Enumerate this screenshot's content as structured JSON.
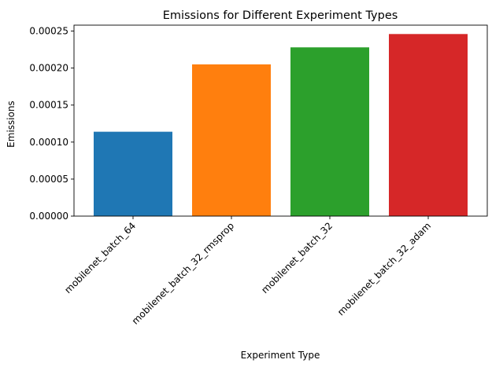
{
  "chart_data": {
    "type": "bar",
    "title": "Emissions for Different Experiment Types",
    "xlabel": "Experiment Type",
    "ylabel": "Emissions",
    "categories": [
      "mobilenet_batch_64",
      "mobilenet_batch_32_rmsprop",
      "mobilenet_batch_32",
      "mobilenet_batch_32_adam"
    ],
    "values": [
      0.000114,
      0.000205,
      0.000228,
      0.000246
    ],
    "colors": [
      "#1f77b4",
      "#ff7f0e",
      "#2ca02c",
      "#d62728"
    ],
    "ylim": [
      0,
      0.000258
    ],
    "yticks": [
      0,
      5e-05,
      0.0001,
      0.00015,
      0.0002,
      0.00025
    ],
    "ytick_labels": [
      "0.00000",
      "0.00005",
      "0.00010",
      "0.00015",
      "0.00020",
      "0.00025"
    ],
    "grid": false,
    "legend": "none"
  }
}
